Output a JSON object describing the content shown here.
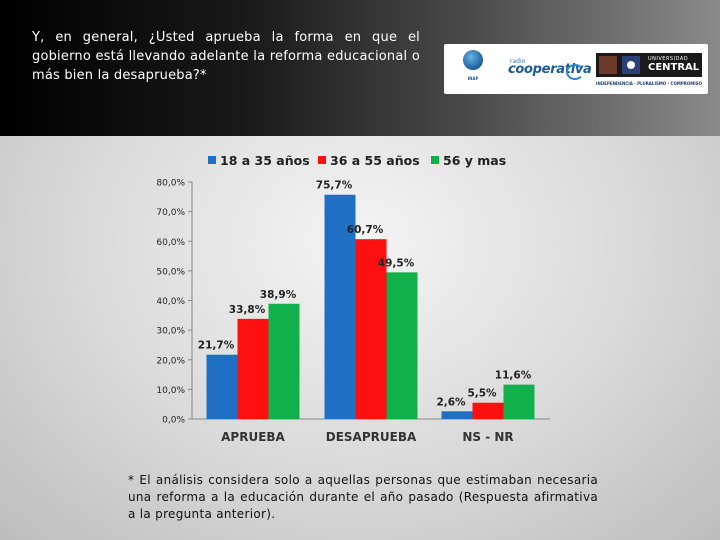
{
  "question": "Y, en general, ¿Usted aprueba la forma en que el gobierno está llevando adelante la reforma educacional o más bien la desaprueba?*",
  "logos": {
    "inap_text": "INAP",
    "cooperativa_small": "radio",
    "cooperativa_main": "cooperativa",
    "ucentral_top": "UNIVERSIDAD",
    "ucentral_main": "CENTRAL",
    "ucentral_tagline": "INDEPENDENCIA · PLURALISMO · COMPROMISO"
  },
  "chart_data": {
    "type": "bar",
    "categories": [
      "APRUEBA",
      "DESAPRUEBA",
      "NS - NR"
    ],
    "series": [
      {
        "name": "18 a 35 años",
        "color": "#1f6fc5",
        "values": [
          21.7,
          75.7,
          2.6
        ],
        "labels": [
          "21,7%",
          "75,7%",
          "2,6%"
        ]
      },
      {
        "name": "36 a 55 años",
        "color": "#ff1010",
        "values": [
          33.8,
          60.7,
          5.5
        ],
        "labels": [
          "33,8%",
          "60,7%",
          "5,5%"
        ]
      },
      {
        "name": "56 y mas",
        "color": "#12b04a",
        "values": [
          38.9,
          49.5,
          11.6
        ],
        "labels": [
          "38,9%",
          "49,5%",
          "11,6%"
        ]
      }
    ],
    "yticks": [
      "0,0%",
      "10,0%",
      "20,0%",
      "30,0%",
      "40,0%",
      "50,0%",
      "60,0%",
      "70,0%",
      "80,0%"
    ],
    "ylim": [
      0,
      80
    ],
    "legend": "top",
    "grid": false
  },
  "footnote": "* El análisis considera solo a aquellas personas que estimaban necesaria una reforma a la educación durante el año pasado (Respuesta afirmativa a la pregunta anterior)."
}
